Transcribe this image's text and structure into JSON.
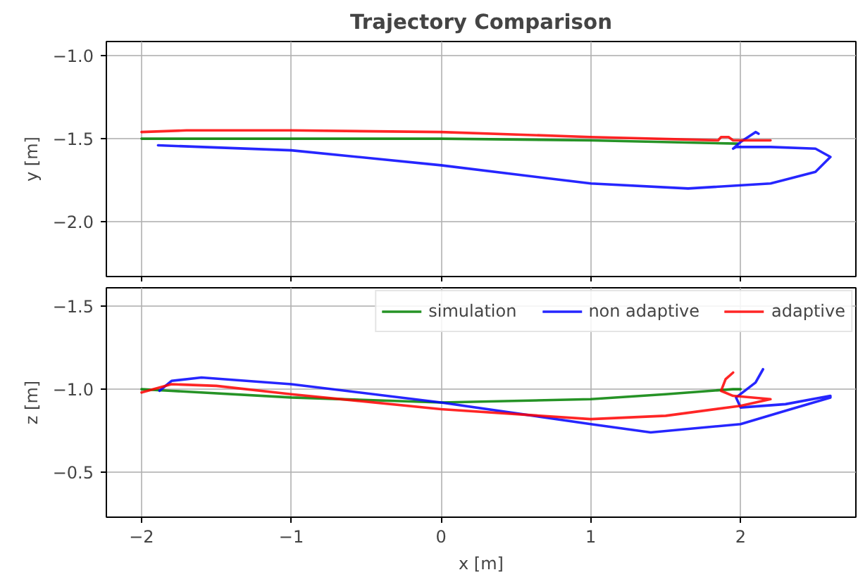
{
  "chart_data": [
    {
      "type": "line",
      "title": "Trajectory Comparison",
      "ylabel": "y [m]",
      "xlim": [
        -2.235,
        2.77
      ],
      "ylim": [
        -2.33,
        -0.915
      ],
      "xticks": [
        -2,
        -1,
        0,
        1,
        2
      ],
      "yticks": [
        {
          "value": -2.0,
          "label": "−2.0"
        },
        {
          "value": -1.5,
          "label": "−1.5"
        },
        {
          "value": -1.0,
          "label": "−1.0"
        }
      ],
      "tick_labels": "y",
      "grid": true,
      "legend": false,
      "line_style": "solid",
      "marker": "none",
      "series": [
        {
          "color": "#008000",
          "x": [
            -2,
            0,
            1,
            1.98
          ],
          "values": [
            -1.5,
            -1.5,
            -1.51,
            -1.53
          ]
        },
        {
          "color": "#0000ff",
          "x": [
            -1.89,
            -1,
            0,
            1,
            1.65,
            2.2,
            2.5,
            2.6,
            2.5,
            2.2,
            1.97,
            1.95,
            2.0,
            2.1,
            2.12
          ],
          "values": [
            -1.54,
            -1.57,
            -1.66,
            -1.77,
            -1.8,
            -1.77,
            -1.7,
            -1.61,
            -1.56,
            -1.55,
            -1.55,
            -1.56,
            -1.52,
            -1.46,
            -1.47
          ]
        },
        {
          "color": "#ff0000",
          "x": [
            -2,
            -1.7,
            -1,
            0,
            1,
            1.85,
            1.87,
            1.92,
            1.95,
            2.2
          ],
          "values": [
            -1.46,
            -1.45,
            -1.45,
            -1.46,
            -1.49,
            -1.51,
            -1.49,
            -1.49,
            -1.51,
            -1.51
          ]
        }
      ]
    },
    {
      "type": "line",
      "xlabel": "x [m]",
      "ylabel": "z [m]",
      "xlim": [
        -2.235,
        2.77
      ],
      "ylim": [
        -0.23,
        -1.61
      ],
      "xticks": [
        {
          "value": -2,
          "label": "−2"
        },
        {
          "value": -1,
          "label": "−1"
        },
        {
          "value": 0,
          "label": "0"
        },
        {
          "value": 1,
          "label": "1"
        },
        {
          "value": 2,
          "label": "2"
        }
      ],
      "yticks": [
        {
          "value": -1.5,
          "label": "−1.5"
        },
        {
          "value": -1.0,
          "label": "−1.0"
        },
        {
          "value": -0.5,
          "label": "−0.5"
        }
      ],
      "grid": true,
      "legend": "top right",
      "line_style": "solid",
      "marker": "none",
      "series": [
        {
          "name": "simulation",
          "color": "#008000",
          "x": [
            -2,
            -1.8,
            -1,
            0,
            1,
            1.5,
            1.95,
            2.0
          ],
          "values": [
            -1.0,
            -0.99,
            -0.95,
            -0.92,
            -0.94,
            -0.97,
            -1.0,
            -1.0
          ]
        },
        {
          "name": "non adaptive",
          "color": "#0000ff",
          "x": [
            -1.88,
            -1.8,
            -1.6,
            -1,
            0,
            1,
            1.4,
            2,
            2.3,
            2.6,
            2.6,
            2.3,
            2.0,
            1.97,
            2.1,
            2.15
          ],
          "values": [
            -0.99,
            -1.05,
            -1.07,
            -1.03,
            -0.92,
            -0.79,
            -0.74,
            -0.79,
            -0.87,
            -0.95,
            -0.96,
            -0.91,
            -0.89,
            -0.95,
            -1.04,
            -1.12
          ]
        },
        {
          "name": "adaptive",
          "color": "#ff0000",
          "x": [
            -2,
            -1.8,
            -1.5,
            -1,
            0,
            1,
            1.5,
            2,
            2.2,
            1.95,
            1.87,
            1.9,
            1.95
          ],
          "values": [
            -0.98,
            -1.03,
            -1.02,
            -0.97,
            -0.88,
            -0.82,
            -0.84,
            -0.9,
            -0.94,
            -0.96,
            -0.99,
            -1.06,
            -1.1
          ]
        }
      ]
    }
  ]
}
